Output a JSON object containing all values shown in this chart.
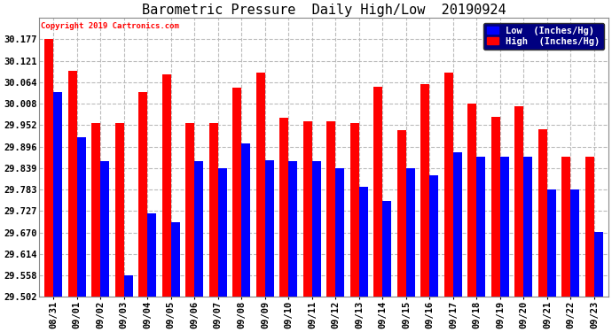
{
  "title": "Barometric Pressure  Daily High/Low  20190924",
  "copyright": "Copyright 2019 Cartronics.com",
  "legend_low": "Low  (Inches/Hg)",
  "legend_high": "High  (Inches/Hg)",
  "dates": [
    "08/31",
    "09/01",
    "09/02",
    "09/03",
    "09/04",
    "09/05",
    "09/06",
    "09/07",
    "09/08",
    "09/09",
    "09/10",
    "09/11",
    "09/12",
    "09/13",
    "09/14",
    "09/15",
    "09/16",
    "09/17",
    "09/18",
    "09/19",
    "09/20",
    "09/21",
    "09/22",
    "09/23"
  ],
  "low": [
    30.04,
    29.92,
    29.858,
    29.558,
    29.72,
    29.698,
    29.858,
    29.84,
    29.904,
    29.86,
    29.858,
    29.858,
    29.84,
    29.79,
    29.753,
    29.84,
    29.82,
    29.882,
    29.87,
    29.87,
    29.87,
    29.783,
    29.783,
    29.672
  ],
  "high": [
    30.177,
    30.094,
    29.958,
    29.958,
    30.038,
    30.085,
    29.958,
    29.958,
    30.05,
    30.09,
    29.972,
    29.962,
    29.962,
    29.958,
    30.052,
    29.94,
    30.06,
    30.09,
    30.008,
    29.975,
    30.002,
    29.942,
    29.87,
    29.87
  ],
  "ylim_min": 29.502,
  "ylim_max": 30.233,
  "yticks": [
    29.502,
    29.558,
    29.614,
    29.67,
    29.727,
    29.783,
    29.839,
    29.896,
    29.952,
    30.008,
    30.064,
    30.121,
    30.177
  ],
  "bar_color_low": "#0000ff",
  "bar_color_high": "#ff0000",
  "background_color": "#ffffff",
  "grid_color": "#bbbbbb",
  "title_fontsize": 11,
  "tick_fontsize": 7.5,
  "legend_fontsize": 7.5,
  "copyright_fontsize": 6.5
}
